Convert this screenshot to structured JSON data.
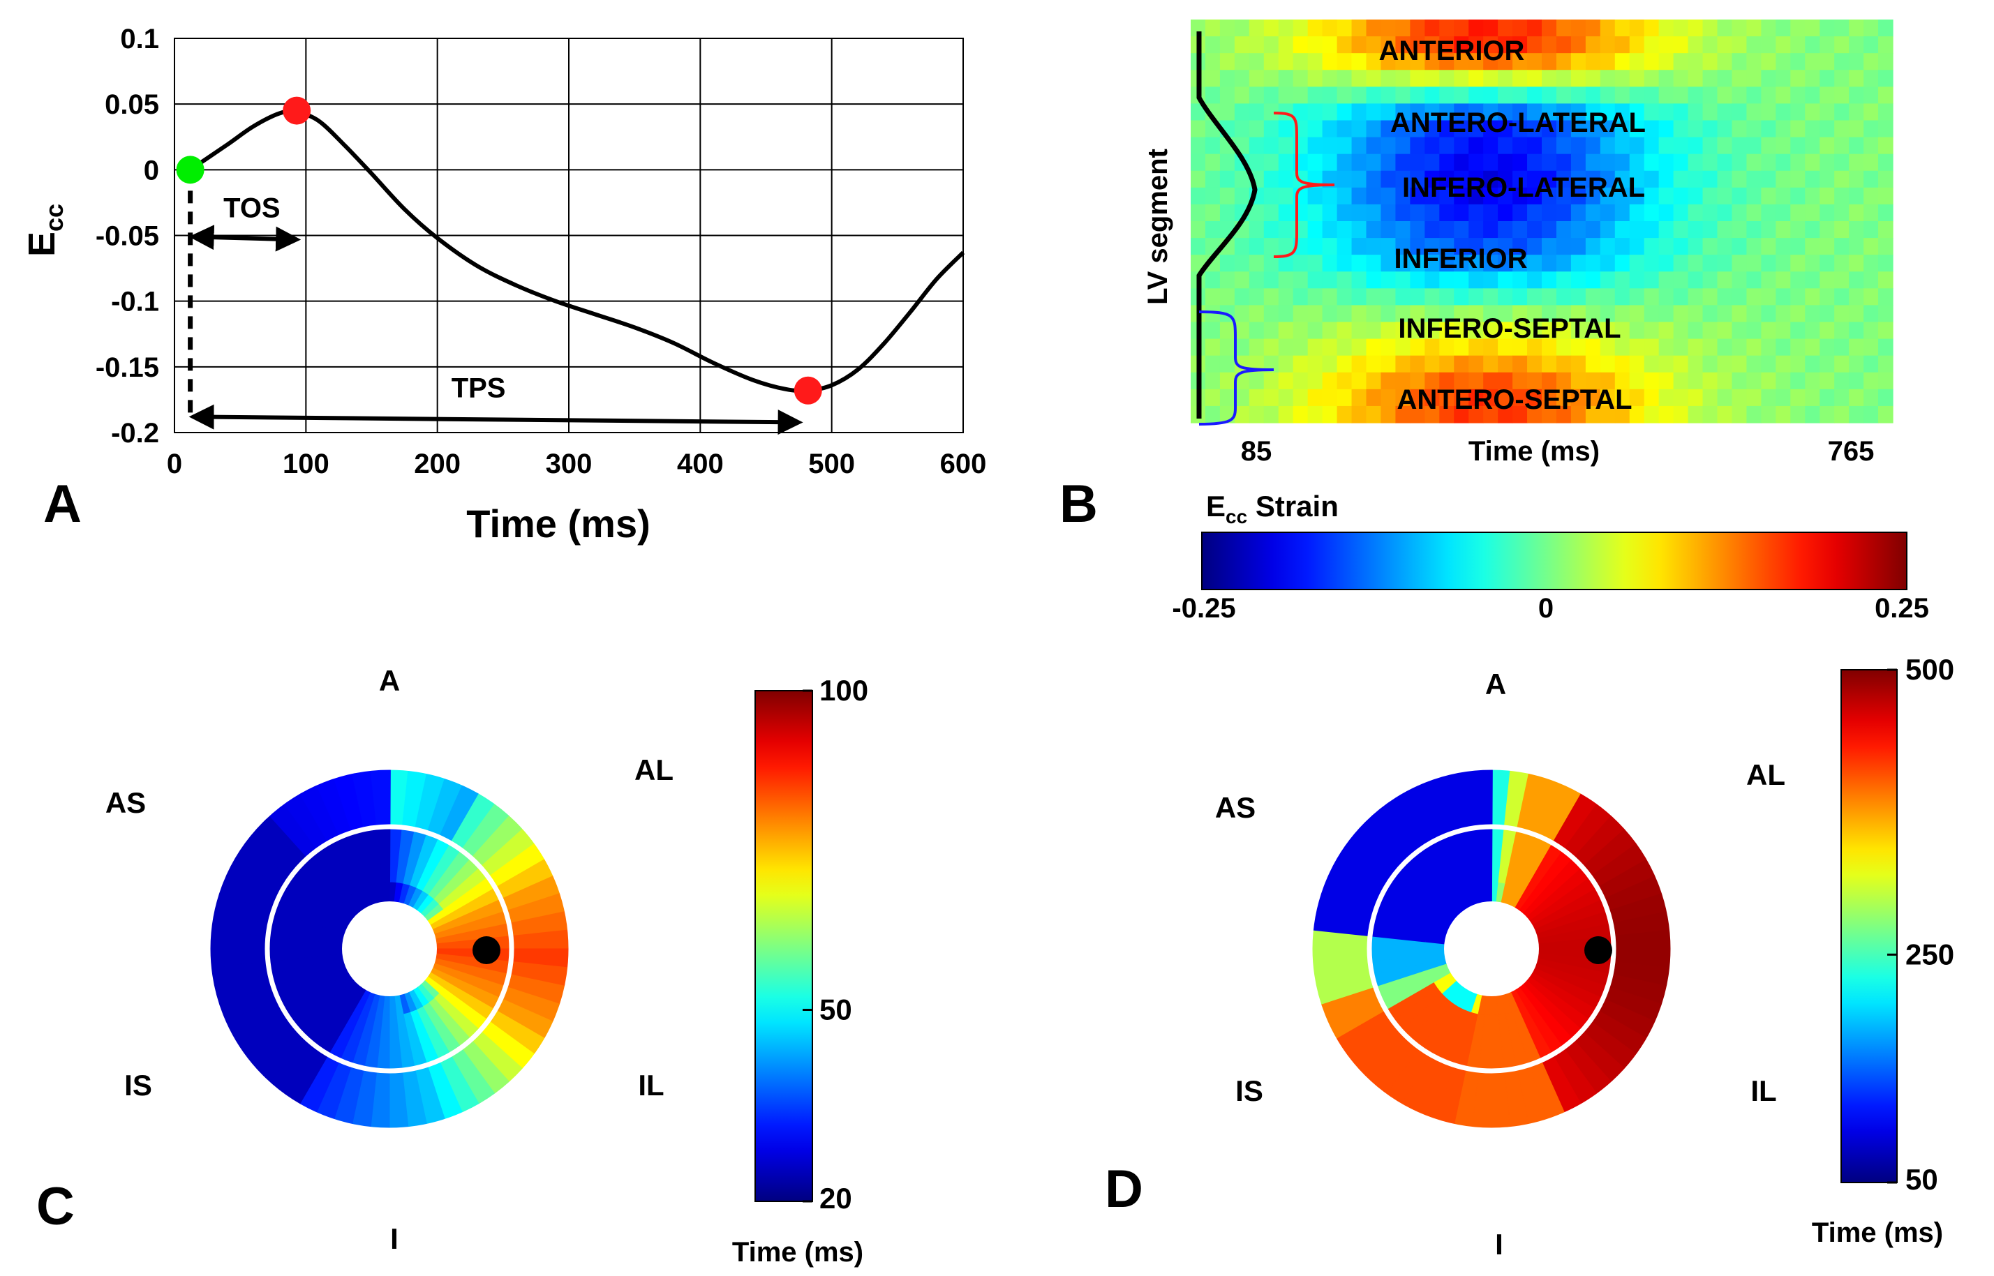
{
  "panels": {
    "a": {
      "letter": "A"
    },
    "b": {
      "letter": "B"
    },
    "c": {
      "letter": "C"
    },
    "d": {
      "letter": "D"
    }
  },
  "chart_data": [
    {
      "id": "panel-a",
      "type": "line",
      "xlabel": "Time (ms)",
      "ylabel_main": "E",
      "ylabel_sub": "cc",
      "xlim": [
        0,
        600
      ],
      "ylim": [
        -0.2,
        0.1
      ],
      "xticks": [
        0,
        100,
        200,
        300,
        400,
        500,
        600
      ],
      "xtick_labels": [
        "0",
        "100",
        "200",
        "300",
        "400",
        "500",
        "600"
      ],
      "yticks": [
        0.1,
        0.05,
        0,
        -0.05,
        -0.1,
        -0.15,
        -0.2
      ],
      "ytick_labels": [
        "0.1",
        "0.05",
        "0",
        "-0.05",
        "-0.1",
        "-0.15",
        "-0.2"
      ],
      "grid": true,
      "series": [
        {
          "name": "strain",
          "x": [
            12,
            40,
            60,
            80,
            93,
            110,
            130,
            150,
            175,
            200,
            230,
            260,
            290,
            320,
            350,
            380,
            410,
            440,
            465,
            482,
            500,
            520,
            540,
            560,
            580,
            600
          ],
          "y": [
            0.0,
            0.019,
            0.033,
            0.043,
            0.044,
            0.037,
            0.018,
            -0.003,
            -0.03,
            -0.052,
            -0.073,
            -0.088,
            -0.1,
            -0.11,
            -0.12,
            -0.132,
            -0.147,
            -0.16,
            -0.167,
            -0.168,
            -0.164,
            -0.152,
            -0.132,
            -0.108,
            -0.083,
            -0.063
          ]
        }
      ],
      "markers": [
        {
          "name": "onset",
          "x": 12,
          "y": 0.0,
          "color": "#00ee00"
        },
        {
          "name": "peak-early",
          "x": 93,
          "y": 0.045,
          "color": "#ff1a1a"
        },
        {
          "name": "peak-systolic",
          "x": 482,
          "y": -0.168,
          "color": "#ff1a1a"
        }
      ],
      "annotations": [
        {
          "label": "TOS",
          "from_x": 12,
          "to_x": 93,
          "y": -0.051
        },
        {
          "label": "TPS",
          "from_x": 12,
          "to_x": 475,
          "y": -0.188
        }
      ],
      "dashed_vertical": {
        "x": 12,
        "from_y": 0.0,
        "to_y": -0.188
      }
    },
    {
      "id": "panel-b",
      "type": "heatmap",
      "ylabel": "LV segment",
      "xlabel": "Time (ms)",
      "x_start_label": "85",
      "x_end_label": "765",
      "rows": [
        "ANTERIOR",
        "ANTERO-LATERAL",
        "INFERO-LATERAL",
        "INFERIOR",
        "INFERO-SEPTAL",
        "ANTERO-SEPTAL"
      ],
      "peak_strain": [
        0.17,
        -0.17,
        -0.2,
        -0.14,
        0.03,
        0.16
      ],
      "colorbar": {
        "title_main": "E",
        "title_sub": "cc",
        "title_rest": " Strain",
        "min": -0.25,
        "max": 0.25,
        "tick_labels": [
          "-0.25",
          "0",
          "0.25"
        ]
      },
      "bracket_colors": {
        "red": "#ff1a1a",
        "blue": "#1a1aff"
      }
    },
    {
      "id": "panel-c",
      "type": "polar-map",
      "quantity": "TOS",
      "labels": [
        "A",
        "AL",
        "IL",
        "I",
        "IS",
        "AS"
      ],
      "colorbar": {
        "min": 20,
        "max": 100,
        "tick_values": [
          100,
          50,
          20
        ],
        "tick_labels": [
          "100",
          "50",
          "20"
        ],
        "label": "Time (ms)"
      }
    },
    {
      "id": "panel-d",
      "type": "polar-map",
      "quantity": "TPS",
      "labels": [
        "A",
        "AL",
        "IL",
        "I",
        "IS",
        "AS"
      ],
      "colorbar": {
        "min": 50,
        "max": 500,
        "tick_values": [
          500,
          250,
          50
        ],
        "tick_labels": [
          "500",
          "250",
          "50"
        ],
        "label": "Time (ms)"
      }
    }
  ]
}
